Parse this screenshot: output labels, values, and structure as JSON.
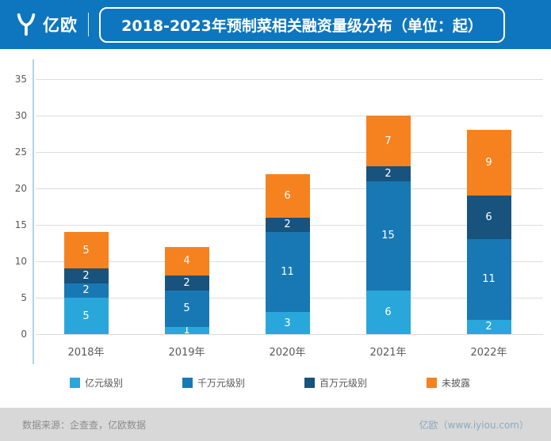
{
  "header": {
    "brand": "亿欧",
    "title": "2018-2023年预制菜相关融资量级分布（单位：起）"
  },
  "chart_data": {
    "type": "bar",
    "stacked": true,
    "title": "2018-2023年预制菜相关融资量级分布（单位：起）",
    "categories": [
      "2018年",
      "2019年",
      "2020年",
      "2021年",
      "2022年"
    ],
    "series": [
      {
        "name": "亿元级别",
        "color": "#2AA7DA",
        "values": [
          5,
          1,
          3,
          6,
          2
        ]
      },
      {
        "name": "千万元级别",
        "color": "#1878B4",
        "values": [
          2,
          5,
          11,
          15,
          11
        ]
      },
      {
        "name": "百万元级别",
        "color": "#17537D",
        "values": [
          2,
          2,
          2,
          2,
          6
        ]
      },
      {
        "name": "未披露",
        "color": "#F5821F",
        "values": [
          5,
          4,
          6,
          7,
          9
        ]
      }
    ],
    "totals": [
      14,
      12,
      22,
      30,
      28
    ],
    "xlabel": "",
    "ylabel": "",
    "ylim": [
      0,
      35
    ],
    "yticks": [
      0,
      5,
      10,
      15,
      20,
      25,
      30,
      35
    ],
    "grid": true,
    "legend_position": "bottom",
    "value_labels": "inside-white"
  },
  "footer": {
    "source": "数据来源：企查查，亿欧数据",
    "credit": "亿欧（www.iyiou.com）"
  }
}
